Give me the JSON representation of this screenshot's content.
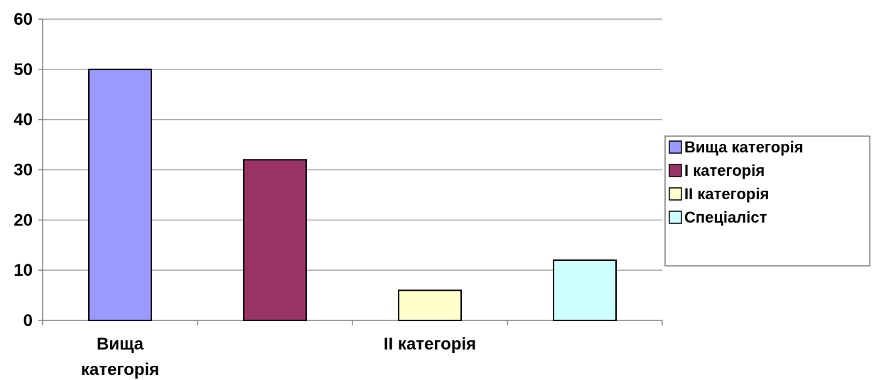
{
  "chart_data": {
    "type": "bar",
    "title": "",
    "xlabel": "",
    "ylabel": "",
    "categories": [
      "Вища категорія",
      "І категорія",
      "ІІ категорія",
      "Спеціаліст"
    ],
    "x_tick_labels": [
      {
        "category_index": 0,
        "lines": [
          "Вища",
          "категорія"
        ]
      },
      {
        "category_index": 2,
        "lines": [
          "ІІ категорія"
        ]
      }
    ],
    "series": [
      {
        "name": "Вища категорія",
        "category_index": 0,
        "value": 50,
        "color": "#9999ff"
      },
      {
        "name": "І категорія",
        "category_index": 1,
        "value": 32,
        "color": "#993366"
      },
      {
        "name": "ІІ категорія",
        "category_index": 2,
        "value": 6,
        "color": "#ffffcc"
      },
      {
        "name": "Спеціаліст",
        "category_index": 3,
        "value": 12,
        "color": "#ccffff"
      }
    ],
    "ylim": [
      0,
      60
    ],
    "yticks": [
      0,
      10,
      20,
      30,
      40,
      50,
      60
    ],
    "grid": true,
    "legend_position": "right"
  }
}
